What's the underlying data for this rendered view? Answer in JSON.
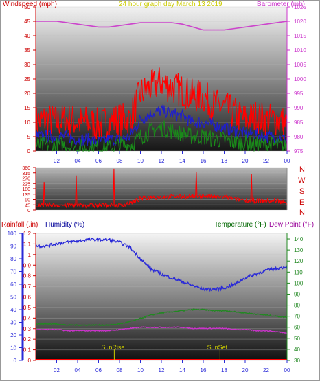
{
  "header": {
    "left_label": "Windspeed (mph)",
    "center_label": "24 hour graph day   March 13 2019",
    "right_label": "Barometer (mb)"
  },
  "wind_dir": {
    "compass": [
      "N",
      "W",
      "S",
      "E",
      "N"
    ]
  },
  "bottom": {
    "rain_label": "Rainfall (.in)",
    "humidity_label": "Humidity (%)",
    "temp_label": "Temperature (°F)",
    "dew_label": "Dew Point (°F)",
    "sunrise_label": "SunRise",
    "sunset_label": "SunSet"
  },
  "colors": {
    "wind_gust": "#ff0000",
    "wind_avg": "#1f1fcc",
    "wind_min": "#1a8a1a",
    "barometer": "#cc44cc",
    "humidity": "#2a2ad8",
    "temperature": "#228822",
    "dew_point": "#cc33cc",
    "rain": "#ff0000",
    "left_header": "#cc0000",
    "center_header": "#cccc00",
    "right_header": "#cc33cc",
    "humidity_label": "#000099",
    "temp_label": "#006600",
    "dew_label": "#990099",
    "sun_marker": "#cccc00"
  },
  "chart_data": [
    {
      "type": "line",
      "title": "",
      "ylabel": "Windspeed (mph)",
      "ylabel2": "Barometer (mb)",
      "ylim": [
        0,
        50
      ],
      "ylim2": [
        975,
        1025
      ],
      "yticks": [
        0,
        5,
        10,
        15,
        20,
        25,
        30,
        35,
        40,
        45,
        50
      ],
      "yticks2": [
        975,
        980,
        985,
        990,
        995,
        1000,
        1005,
        1010,
        1015,
        1020,
        1025
      ],
      "xlim": [
        0,
        24
      ],
      "x_tick_labels": [
        "02",
        "04",
        "06",
        "08",
        "10",
        "12",
        "14",
        "16",
        "18",
        "20",
        "22",
        "00"
      ],
      "x": [
        0,
        1,
        2,
        3,
        4,
        5,
        6,
        7,
        8,
        9,
        10,
        11,
        12,
        13,
        14,
        15,
        16,
        17,
        18,
        19,
        20,
        21,
        22,
        23,
        24
      ],
      "series": [
        {
          "name": "Gust",
          "values": [
            10,
            11,
            10,
            11,
            10,
            10,
            9,
            10,
            11,
            11,
            20,
            22,
            24,
            22,
            21,
            19,
            19,
            16,
            15,
            13,
            11,
            12,
            11,
            11,
            9
          ]
        },
        {
          "name": "Average",
          "values": [
            5,
            5,
            5,
            5,
            4,
            4,
            3,
            4,
            4,
            5,
            11,
            13,
            14,
            13,
            12,
            10,
            10,
            9,
            8,
            7,
            6,
            6,
            5,
            5,
            4
          ]
        },
        {
          "name": "Minimum",
          "values": [
            2,
            2,
            2,
            2,
            1,
            1,
            1,
            1,
            2,
            2,
            5,
            7,
            8,
            7,
            6,
            5,
            5,
            4,
            4,
            3,
            3,
            2,
            2,
            2,
            1
          ]
        },
        {
          "name": "Barometer",
          "axis": "right",
          "values": [
            1020,
            1020,
            1020,
            1019.5,
            1019,
            1018.5,
            1018,
            1018,
            1018.5,
            1019,
            1019.5,
            1019.5,
            1019.5,
            1019.5,
            1019,
            1018,
            1017,
            1017,
            1017,
            1017.5,
            1018,
            1018.5,
            1019,
            1019.5,
            1020
          ]
        }
      ]
    },
    {
      "type": "line",
      "title": "",
      "ylabel": "",
      "ylim": [
        0,
        360
      ],
      "yticks": [
        0,
        45,
        90,
        135,
        180,
        225,
        270,
        315,
        360
      ],
      "xlim": [
        0,
        24
      ],
      "x": [
        0,
        1,
        2,
        3,
        4,
        5,
        6,
        7,
        8,
        9,
        10,
        11,
        12,
        13,
        14,
        15,
        16,
        17,
        18,
        19,
        20,
        21,
        22,
        23,
        24
      ],
      "series": [
        {
          "name": "Wind direction",
          "values": [
            45,
            40,
            45,
            40,
            45,
            40,
            40,
            45,
            40,
            60,
            95,
            110,
            110,
            115,
            110,
            115,
            120,
            110,
            110,
            90,
            85,
            80,
            75,
            80,
            60
          ]
        }
      ]
    },
    {
      "type": "line",
      "title": "",
      "ylabel": "Rainfall (.in)",
      "ylabel2": "Temperature (°F)",
      "ylim": [
        0,
        1.2
      ],
      "ylim_humidity": [
        0,
        100
      ],
      "ylim2": [
        30,
        145
      ],
      "yticks": [
        0,
        0.1,
        0.2,
        0.3,
        0.4,
        0.5,
        0.6,
        0.7,
        0.8,
        0.9,
        1,
        1.1,
        1.2
      ],
      "yticks_humidity": [
        0,
        10,
        20,
        30,
        40,
        50,
        60,
        70,
        80,
        90,
        100
      ],
      "yticks2": [
        30,
        40,
        50,
        60,
        70,
        80,
        90,
        100,
        110,
        120,
        130,
        140
      ],
      "xlim": [
        0,
        24
      ],
      "x": [
        0,
        1,
        2,
        3,
        4,
        5,
        6,
        7,
        8,
        9,
        10,
        11,
        12,
        13,
        14,
        15,
        16,
        17,
        18,
        19,
        20,
        21,
        22,
        23,
        24
      ],
      "series": [
        {
          "name": "Humidity (%)",
          "axis": "humidity",
          "values": [
            90,
            90,
            92,
            93,
            94,
            95,
            95,
            95,
            93,
            89,
            80,
            72,
            68,
            65,
            62,
            59,
            56,
            56,
            57,
            60,
            65,
            68,
            71,
            72,
            74
          ]
        },
        {
          "name": "Temperature (°F)",
          "axis": "right",
          "values": [
            63,
            63,
            63,
            62,
            62,
            62,
            62,
            62,
            63,
            65,
            68,
            71,
            73,
            74,
            75,
            76,
            76,
            75,
            75,
            74,
            73,
            72,
            71,
            70,
            69
          ]
        },
        {
          "name": "Dew Point (°F)",
          "axis": "right",
          "values": [
            58,
            58,
            58,
            57,
            57,
            57,
            57,
            57,
            58,
            59,
            60,
            60,
            60,
            60,
            60,
            59,
            59,
            59,
            59,
            58,
            58,
            57,
            57,
            56,
            55
          ]
        },
        {
          "name": "Rainfall (.in)",
          "axis": "left",
          "values": [
            0,
            0,
            0,
            0,
            0,
            0,
            0,
            0,
            0,
            0,
            0,
            0,
            0,
            0,
            0,
            0,
            0,
            0,
            0,
            0,
            0,
            0,
            0,
            0,
            0
          ]
        }
      ],
      "annotations": [
        {
          "label": "SunRise",
          "x": 7.5
        },
        {
          "label": "SunSet",
          "x": 17.6
        }
      ]
    }
  ]
}
